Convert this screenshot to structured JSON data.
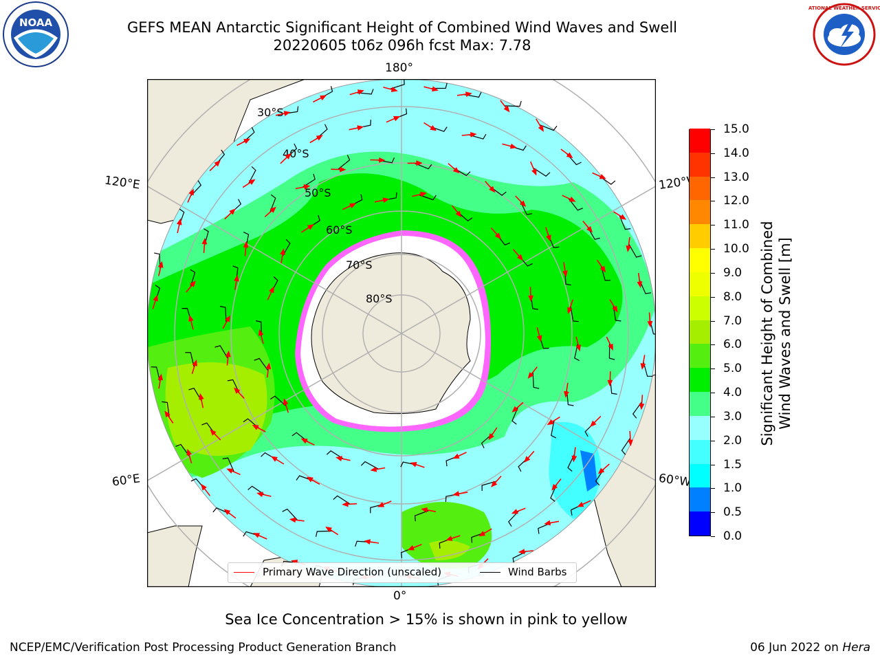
{
  "title": {
    "line1": "GEFS MEAN Antarctic Significant Height of Combined Wind Waves and Swell",
    "line2": "20220605 t06z 096h fcst   Max: 7.78"
  },
  "logos": {
    "left": {
      "icon": "noaa-logo",
      "text": "NOAA"
    },
    "right": {
      "icon": "nws-logo",
      "text": "NATIONAL WEATHER SERVICE"
    }
  },
  "map": {
    "projection": "south-polar-stereographic",
    "longitude_labels": {
      "top": "180°",
      "bottom": "0°",
      "upper_left": "120°E",
      "upper_right": "120°W",
      "lower_left": "60°E",
      "lower_right": "60°W"
    },
    "latitude_labels": [
      "30°S",
      "40°S",
      "50°S",
      "60°S",
      "70°S",
      "80°S"
    ],
    "colors": {
      "land": "#efebdc",
      "gridline": "#b0b0b0",
      "coastline": "#000000",
      "sea_ice": "#ff33ff",
      "wave_arrow": "#ff0000",
      "wind_barb": "#000000"
    }
  },
  "colorbar": {
    "title_line1": "Significant Height of Combined",
    "title_line2": "Wind Waves and Swell [m]",
    "ticks": [
      "0.0",
      "0.5",
      "1.0",
      "1.5",
      "2.0",
      "3.0",
      "4.0",
      "5.0",
      "6.0",
      "7.0",
      "8.0",
      "9.0",
      "10.0",
      "11.0",
      "12.0",
      "13.0",
      "14.0",
      "15.0"
    ],
    "colors": [
      "#0000ff",
      "#0080ff",
      "#00ffff",
      "#44ffff",
      "#98ffff",
      "#44ff88",
      "#00ee00",
      "#55ee11",
      "#a6ee00",
      "#ccff00",
      "#eeff00",
      "#ffff00",
      "#ffcc00",
      "#ff8800",
      "#ff6600",
      "#ff3300",
      "#ff0000"
    ]
  },
  "legend": {
    "primary_wave": "Primary Wave Direction (unscaled)",
    "wind_barbs": "Wind Barbs",
    "primary_wave_color": "#ff0000",
    "wind_barbs_color": "#000000"
  },
  "ice_note": "Sea Ice Concentration > 15% is shown in pink to yellow",
  "footer": {
    "left": "NCEP/EMC/Verification Post Processing Product Generation Branch",
    "right_prefix": "06 Jun 2022 on ",
    "right_host": "Hera"
  }
}
